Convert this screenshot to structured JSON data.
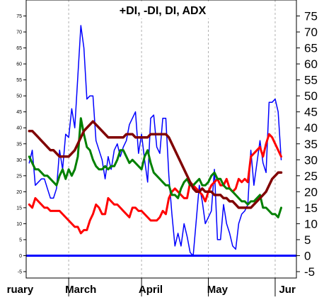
{
  "chart_data": {
    "type": "line",
    "title": "+DI, -DI, DI, ADX",
    "xlabel": "",
    "ylabel": "",
    "ylim": [
      -7,
      80
    ],
    "right_axis_ticks": [
      -5,
      0,
      5,
      10,
      15,
      20,
      25,
      30,
      35,
      40,
      45,
      50,
      55,
      60,
      65,
      70,
      75
    ],
    "left_axis_ticks": [
      -5,
      0,
      5,
      10,
      15,
      20,
      25,
      30,
      35,
      40,
      45,
      50,
      55,
      60,
      65,
      70,
      75
    ],
    "month_labels": [
      {
        "label": "ruary",
        "index": -3
      },
      {
        "label": "March",
        "index": 17
      },
      {
        "label": "April",
        "index": 40
      },
      {
        "label": "May",
        "index": 62
      },
      {
        "label": "Jur",
        "index": 85
      }
    ],
    "x_range": [
      -1,
      88
    ],
    "separator_indices": [
      13,
      37,
      59,
      81
    ],
    "grid": true,
    "zero_line": {
      "value": 0,
      "color": "#0000ff"
    },
    "series": [
      {
        "color": "#0000ff",
        "width": 1.5,
        "values": [
          29,
          33,
          22,
          23,
          24,
          24,
          21,
          18,
          18,
          21,
          33,
          27,
          38,
          37,
          46,
          40,
          56,
          72,
          65,
          49,
          50,
          50,
          36,
          33,
          30,
          24,
          31,
          27,
          33,
          35,
          31,
          34,
          36,
          41,
          43,
          45,
          32,
          38,
          30,
          23,
          43,
          44,
          34,
          32,
          43,
          43,
          25,
          13,
          3,
          7,
          3,
          10,
          6,
          1,
          0,
          11,
          22,
          17,
          10,
          12,
          14,
          27,
          5,
          5,
          16,
          10,
          7,
          3,
          2,
          10,
          13,
          14,
          16,
          33,
          22,
          29,
          36,
          29,
          26,
          48,
          48,
          49,
          45,
          30
        ]
      },
      {
        "color": "#ff0000",
        "width": 3,
        "values": [
          16,
          15,
          18,
          17,
          16,
          15,
          15,
          14,
          14,
          14,
          14,
          13,
          12,
          11,
          10,
          9,
          9,
          7,
          8,
          8,
          11,
          13,
          16,
          15,
          13,
          13,
          18,
          17,
          16,
          16,
          15,
          14,
          13,
          12,
          15,
          15,
          14,
          14,
          13,
          12,
          11,
          11,
          11,
          12,
          14,
          13,
          18,
          20,
          21,
          20,
          19,
          18,
          18,
          23,
          22,
          21,
          20,
          19,
          17,
          20,
          22,
          23,
          24,
          22,
          22,
          24,
          21,
          20,
          21,
          24,
          23,
          24,
          23,
          31,
          32,
          33,
          34,
          31,
          35,
          38,
          37,
          35,
          33,
          31
        ]
      },
      {
        "color": "#008000",
        "width": 3,
        "values": [
          31,
          29,
          27,
          27,
          26,
          25,
          25,
          24,
          23,
          22,
          25,
          27,
          24,
          27,
          25,
          27,
          31,
          43,
          38,
          34,
          33,
          30,
          28,
          27,
          27,
          28,
          27,
          28,
          28,
          30,
          33,
          33,
          31,
          29,
          30,
          29,
          28,
          27,
          31,
          33,
          29,
          26,
          25,
          24,
          23,
          22,
          22,
          19,
          19,
          18,
          21,
          23,
          24,
          22,
          22,
          23,
          24,
          22,
          22,
          23,
          25,
          26,
          24,
          24,
          22,
          21,
          21,
          20,
          19,
          18,
          17,
          17,
          16,
          17,
          17,
          18,
          19,
          15,
          15,
          14,
          13,
          13,
          12,
          15
        ]
      },
      {
        "color": "#800000",
        "width": 3.5,
        "values": [
          39,
          39,
          38,
          37,
          36,
          35,
          34,
          33,
          33,
          32,
          31,
          31,
          31,
          31,
          32,
          33,
          35,
          37,
          39,
          40,
          41,
          42,
          41,
          40,
          39,
          38,
          37,
          37,
          37,
          37,
          37,
          37,
          38,
          38,
          38,
          37,
          37,
          37,
          37,
          37,
          38,
          38,
          38,
          38,
          38,
          38,
          37,
          35,
          33,
          31,
          29,
          27,
          25,
          23,
          21,
          20,
          20,
          21,
          20,
          20,
          20,
          19,
          19,
          19,
          18,
          18,
          17,
          17,
          16,
          15,
          15,
          15,
          15,
          15,
          16,
          17,
          18,
          19,
          20,
          22,
          24,
          25,
          26,
          26
        ]
      }
    ]
  }
}
